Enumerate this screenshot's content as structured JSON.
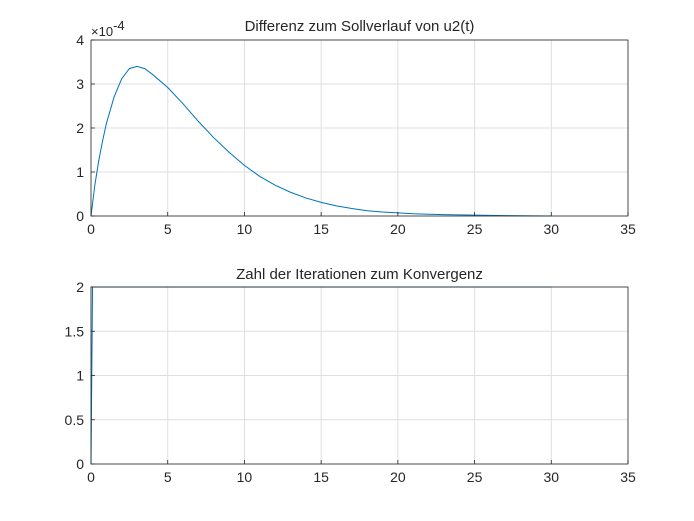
{
  "chart_data": [
    {
      "type": "line",
      "title": "Differenz zum Sollverlauf von u2(t)",
      "xlabel": "",
      "ylabel": "",
      "xlim": [
        0,
        35
      ],
      "ylim": [
        0,
        4
      ],
      "xticks": [
        "0",
        "5",
        "10",
        "15",
        "20",
        "25",
        "30",
        "35"
      ],
      "yticks": [
        "0",
        "1",
        "2",
        "3",
        "4"
      ],
      "y_exponent": {
        "base": "×10",
        "power": "-4"
      },
      "y_scale_factor": 0.0001,
      "grid": true,
      "series": [
        {
          "color": "#0072bd",
          "x": [
            0,
            0.25,
            0.5,
            0.75,
            1,
            1.5,
            2,
            2.5,
            3,
            3.5,
            4,
            5,
            6,
            7,
            8,
            9,
            10,
            11,
            12,
            13,
            14,
            15,
            16,
            17,
            18,
            19,
            20,
            21,
            22,
            23,
            24,
            25,
            26,
            27,
            28,
            29,
            30
          ],
          "y": [
            0,
            0.7,
            1.25,
            1.7,
            2.1,
            2.7,
            3.12,
            3.35,
            3.4,
            3.35,
            3.22,
            2.92,
            2.55,
            2.15,
            1.78,
            1.45,
            1.15,
            0.9,
            0.7,
            0.54,
            0.41,
            0.31,
            0.23,
            0.17,
            0.12,
            0.09,
            0.07,
            0.05,
            0.04,
            0.03,
            0.025,
            0.02,
            0.013,
            0.008,
            0.005,
            0.003,
            0.001
          ]
        }
      ]
    },
    {
      "type": "line",
      "title": "Zahl der Iterationen zum Konvergenz",
      "xlabel": "",
      "ylabel": "",
      "xlim": [
        0,
        35
      ],
      "ylim": [
        0,
        2
      ],
      "xticks": [
        "0",
        "5",
        "10",
        "15",
        "20",
        "25",
        "30",
        "35"
      ],
      "yticks": [
        "0",
        "0.5",
        "1",
        "1.5",
        "2"
      ],
      "grid": true,
      "series": [
        {
          "color": "#0072bd",
          "x": [
            0,
            0.05,
            0.1,
            30
          ],
          "y": [
            0,
            1,
            2,
            2
          ]
        }
      ]
    }
  ]
}
